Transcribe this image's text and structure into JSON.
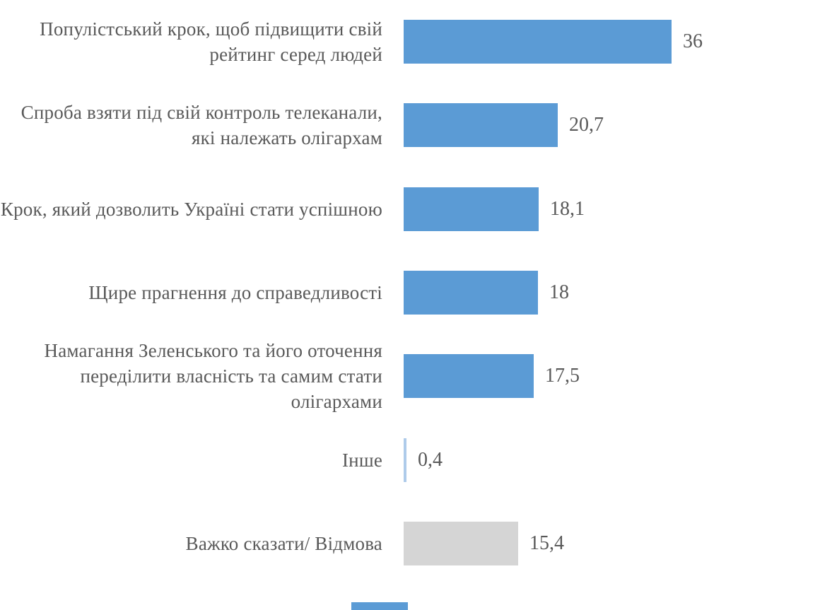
{
  "chart_data": {
    "type": "bar",
    "orientation": "horizontal",
    "title": "",
    "xlabel": "",
    "ylabel": "",
    "xlim": [
      0,
      40
    ],
    "grid": false,
    "legend": "none",
    "categories": [
      "Популістський крок, щоб підвищити свій рейтинг серед людей",
      "Спроба взяти під свій контроль телеканали, які належать олігархам",
      "Крок, який дозволить Україні стати успішною",
      "Щире прагнення до справедливості",
      "Намагання Зеленського та його оточення переділити власність та самим стати олігархами",
      "Інше",
      "Важко сказати/ Відмова"
    ],
    "values": [
      36,
      20.7,
      18.1,
      18,
      17.5,
      0.4,
      15.4
    ],
    "value_labels": [
      "36",
      "20,7",
      "18,1",
      "18",
      "17,5",
      "0,4",
      "15,4"
    ],
    "bar_colors": [
      "#5B9BD5",
      "#5B9BD5",
      "#5B9BD5",
      "#5B9BD5",
      "#5B9BD5",
      "#AECBEA",
      "#D5D5D5"
    ],
    "text_color": "#595959"
  },
  "misc": {
    "bottom_cutoff_swatch_color": "#5B9BD5"
  }
}
